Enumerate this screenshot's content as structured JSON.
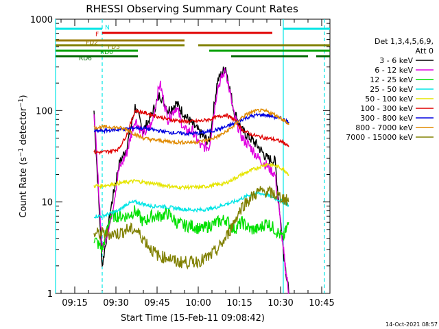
{
  "chart_data": {
    "type": "line",
    "title": "RHESSI Observing Summary Count Rates",
    "xlabel": "Start Time (15-Feb-11 09:08:42)",
    "ylabel": "Count Rate (s⁻¹ detector⁻¹)",
    "ylabel_main": "Count Rate (s",
    "ylabel_sup1": "−1",
    "ylabel_mid": " detector",
    "ylabel_sup2": "−1",
    "ylabel_end": ")",
    "yscale": "log",
    "ylim": [
      1,
      1000
    ],
    "xlim": [
      "09:08",
      "10:48"
    ],
    "x_ticks": [
      "09:15",
      "09:30",
      "09:45",
      "10:00",
      "10:15",
      "10:30",
      "10:45"
    ],
    "y_ticks": [
      "1",
      "10",
      "100",
      "1000"
    ],
    "timestamp": "14-Oct-2021 08:57",
    "legend_header": [
      "Det 1,3,4,5,6,9,",
      "Att 0"
    ],
    "legend_position": "right",
    "flags": [
      {
        "label": "N",
        "color": "#00e5e5",
        "segments": [
          [
            "09:08",
            "09:25"
          ],
          [
            "10:31",
            "10:48"
          ]
        ]
      },
      {
        "label": "F",
        "color": "#e00000",
        "segments": [
          [
            "09:25",
            "10:27"
          ]
        ]
      },
      {
        "label": "FD2",
        "color": "#9a7a00",
        "segments": [
          [
            "09:08",
            "09:55"
          ]
        ]
      },
      {
        "label": "FD3",
        "color": "#808000",
        "segments": [
          [
            "09:08",
            "09:55"
          ],
          [
            "10:00",
            "10:48"
          ]
        ]
      },
      {
        "label": "RD0",
        "color": "#00a000",
        "segments": [
          [
            "09:08",
            "09:38"
          ],
          [
            "10:04",
            "10:48"
          ]
        ]
      },
      {
        "label": "RD6",
        "color": "#006800",
        "segments": [
          [
            "09:08",
            "09:38"
          ],
          [
            "10:12",
            "10:40"
          ],
          [
            "10:43",
            "10:48"
          ]
        ]
      }
    ],
    "vlines": [
      {
        "x": "09:08",
        "color": "#00e5e5",
        "style": "solid"
      },
      {
        "x": "09:25",
        "color": "#00e5e5",
        "style": "dashed"
      },
      {
        "x": "10:31",
        "color": "#00e5e5",
        "style": "solid"
      },
      {
        "x": "10:46",
        "color": "#00e5e5",
        "style": "dashed"
      }
    ],
    "x_time": [
      "09:22",
      "09:25",
      "09:28",
      "09:31",
      "09:34",
      "09:37",
      "09:40",
      "09:43",
      "09:46",
      "09:49",
      "09:52",
      "09:55",
      "09:58",
      "10:01",
      "10:04",
      "10:07",
      "10:10",
      "10:13",
      "10:16",
      "10:19",
      "10:22",
      "10:25",
      "10:28",
      "10:31",
      "10:33"
    ],
    "series": [
      {
        "name": "3 - 6 keV",
        "color": "#000000",
        "values": [
          100,
          2,
          8,
          25,
          40,
          110,
          60,
          90,
          150,
          100,
          120,
          90,
          70,
          55,
          45,
          210,
          300,
          100,
          60,
          50,
          40,
          30,
          28,
          3,
          1
        ]
      },
      {
        "name": "6 - 12 keV",
        "color": "#e000e0",
        "values": [
          100,
          3,
          6,
          22,
          35,
          80,
          55,
          70,
          200,
          80,
          110,
          60,
          60,
          40,
          40,
          180,
          280,
          90,
          50,
          40,
          30,
          25,
          20,
          3,
          1
        ]
      },
      {
        "name": "12 - 25 keV",
        "color": "#00e000",
        "values": [
          4,
          3,
          7,
          7,
          7,
          8,
          6,
          7,
          7,
          7.5,
          6,
          5.5,
          5.5,
          5,
          5.5,
          6,
          6.5,
          5,
          6,
          5,
          5,
          6,
          5,
          4,
          6
        ]
      },
      {
        "name": "25 - 50 keV",
        "color": "#00e5e5",
        "values": [
          7,
          7,
          7.5,
          8,
          9.5,
          10,
          9.5,
          9,
          9,
          8.8,
          8.5,
          8.3,
          8.2,
          8.2,
          8.4,
          8.8,
          9.5,
          10,
          11,
          12,
          12.5,
          12,
          11,
          10,
          9
        ]
      },
      {
        "name": "50 - 100 keV",
        "color": "#e5e500",
        "values": [
          15,
          15,
          15.5,
          16,
          16.5,
          17,
          16.5,
          16,
          15.5,
          15,
          14.5,
          14.5,
          14.5,
          14.5,
          15,
          15.5,
          16,
          18,
          20,
          22,
          24,
          26,
          25,
          23,
          20
        ]
      },
      {
        "name": "100 - 300 keV",
        "color": "#e00000",
        "values": [
          35,
          35,
          36,
          38,
          55,
          100,
          95,
          90,
          85,
          80,
          78,
          76,
          76,
          77,
          80,
          85,
          90,
          80,
          62,
          55,
          52,
          50,
          48,
          45,
          40
        ]
      },
      {
        "name": "300 - 800 keV",
        "color": "#0000e0",
        "values": [
          60,
          60,
          61,
          62,
          63,
          65,
          64,
          62,
          60,
          58,
          57,
          56,
          56,
          57,
          59,
          62,
          66,
          72,
          80,
          86,
          90,
          89,
          85,
          80,
          75
        ]
      },
      {
        "name": "800 - 7000 keV",
        "color": "#e08a00",
        "values": [
          65,
          66,
          66,
          65,
          62,
          55,
          50,
          48,
          47,
          46,
          45,
          45,
          45,
          46,
          48,
          52,
          58,
          68,
          85,
          95,
          100,
          98,
          90,
          80,
          70
        ]
      },
      {
        "name": "7000 - 15000 keV",
        "color": "#808000",
        "values": [
          4.5,
          4.5,
          4.5,
          4.5,
          5,
          5,
          4,
          3,
          2.5,
          2.5,
          2.2,
          2.2,
          2.2,
          2.3,
          2.5,
          3,
          4,
          6,
          9,
          11,
          13,
          13,
          12,
          11,
          10
        ]
      }
    ]
  }
}
